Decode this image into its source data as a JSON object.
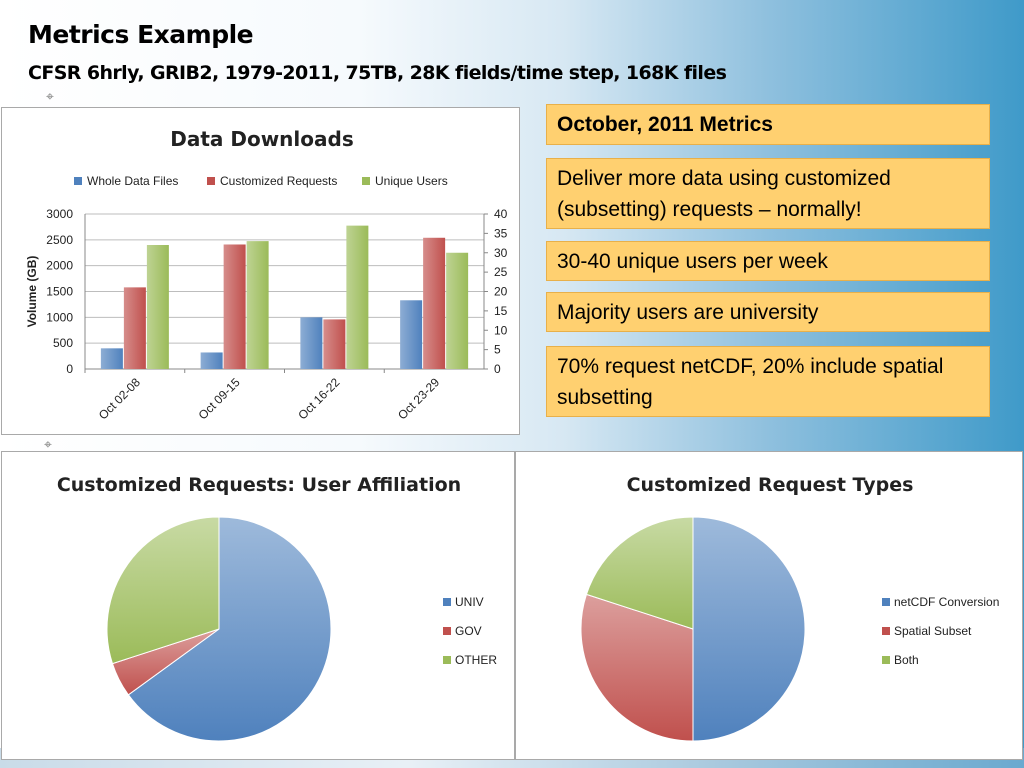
{
  "slide": {
    "title": "Metrics Example",
    "subtitle": "CFSR 6hrly, GRIB2, 1979-2011, 75TB, 28K fields/time step, 168K files"
  },
  "notes": [
    "October, 2011 Metrics",
    "Deliver more data using customized (subsetting) requests – normally!",
    "30-40 unique users per week",
    "Majority users are university",
    "70% request netCDF, 20% include spatial subsetting"
  ],
  "chart_data": [
    {
      "type": "bar",
      "title": "Data Downloads",
      "categories": [
        "Oct 02-08",
        "Oct 09-15",
        "Oct 16-22",
        "Oct 23-29"
      ],
      "series": [
        {
          "name": "Whole Data Files",
          "values": [
            400,
            320,
            1000,
            1330
          ],
          "axis": "left",
          "color": "#4f81bd"
        },
        {
          "name": "Customized Requests",
          "values": [
            1580,
            2410,
            960,
            2540
          ],
          "axis": "left",
          "color": "#c0504d"
        },
        {
          "name": "Unique Users",
          "values": [
            32,
            33,
            37,
            30
          ],
          "axis": "right",
          "color": "#9bbb59"
        }
      ],
      "ylabel": "Volume (GB)",
      "ylim": [
        0,
        3000
      ],
      "yticks": [
        "0",
        "500",
        "1000",
        "1500",
        "2000",
        "2500",
        "3000"
      ],
      "y2lim": [
        0,
        40
      ],
      "y2ticks": [
        "0",
        "5",
        "10",
        "15",
        "20",
        "25",
        "30",
        "35",
        "40"
      ],
      "grid": true,
      "legend": "top"
    },
    {
      "type": "pie",
      "title": "Customized Requests: User Affiliation",
      "labels": [
        "UNIV",
        "GOV",
        "OTHER"
      ],
      "values": [
        65,
        5,
        30
      ],
      "colors": [
        "#4f81bd",
        "#c0504d",
        "#9bbb59"
      ],
      "legend": "right"
    },
    {
      "type": "pie",
      "title": "Customized Request Types",
      "labels": [
        "netCDF Conversion",
        "Spatial Subset",
        "Both"
      ],
      "values": [
        50,
        30,
        20
      ],
      "colors": [
        "#4f81bd",
        "#c0504d",
        "#9bbb59"
      ],
      "legend": "right"
    }
  ]
}
